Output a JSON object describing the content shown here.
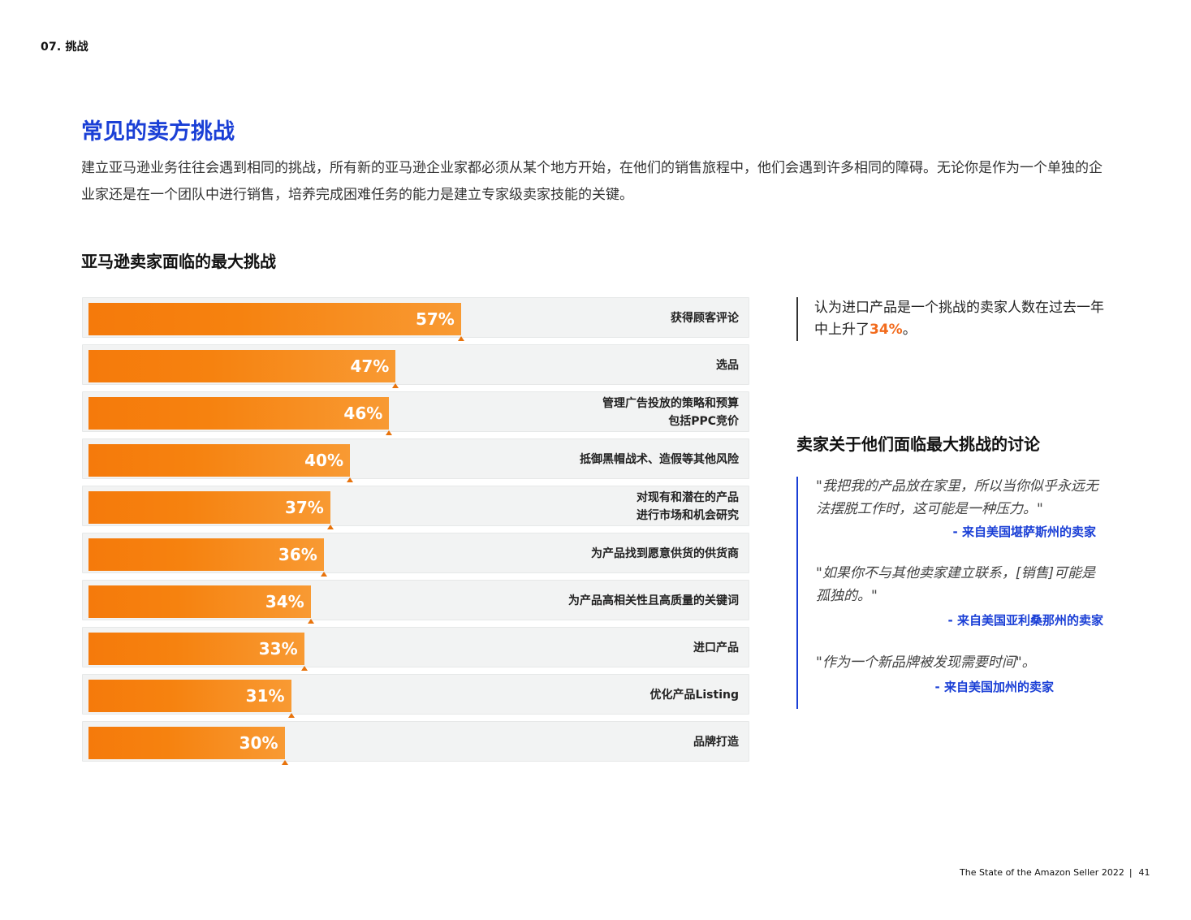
{
  "section_tag": "07. 挑战",
  "page_title": "常见的卖方挑战",
  "intro": "建立亚马逊业务往往会遇到相同的挑战，所有新的亚马逊企业家都必须从某个地方开始，在他们的销售旅程中，他们会遇到许多相同的障碍。无论你是作为一个单独的企业家还是在一个团队中进行销售，培养完成困难任务的能力是建立专家级卖家技能的关键。",
  "colors": {
    "accent_blue": "#1a3fd6",
    "bar_orange": "#f57a0b",
    "highlight_orange": "#f26b1d",
    "track_gray": "#f2f3f3"
  },
  "chart_data": {
    "type": "bar",
    "orientation": "horizontal",
    "title": "亚马逊卖家面临的最大挑战",
    "xlabel": "",
    "ylabel": "",
    "xlim": [
      0,
      100
    ],
    "grid": false,
    "legend": null,
    "categories": [
      "获得顾客评论",
      "选品",
      "管理广告投放的策略和预算\n包括PPC竞价",
      "抵御黑帽战术、造假等其他风险",
      "对现有和潜在的产品\n进行市场和机会研究",
      "为产品找到愿意供货的供货商",
      "为产品高相关性且高质量的关键词",
      "进口产品",
      "优化产品Listing",
      "品牌打造"
    ],
    "values": [
      57,
      47,
      46,
      40,
      37,
      36,
      34,
      33,
      31,
      30
    ],
    "value_labels": [
      "57%",
      "47%",
      "46%",
      "40%",
      "37%",
      "36%",
      "34%",
      "33%",
      "31%",
      "30%"
    ]
  },
  "stat_callout": {
    "text_before": "认为进口产品是一个挑战的卖家人数在过去一年中上升了",
    "highlight": "34%",
    "text_after": "。"
  },
  "quotes_section": {
    "title": "卖家关于他们面临最大挑战的讨论",
    "quotes": [
      {
        "text": "\"我把我的产品放在家里，所以当你似乎永远无法摆脱工作时，这可能是一种压力。\"",
        "attribution": "- 来自美国堪萨斯州的卖家"
      },
      {
        "text": "\"如果你不与其他卖家建立联系，[销售]可能是孤独的。\"",
        "attribution": "- 来自美国亚利桑那州的卖家"
      },
      {
        "text": "\"作为一个新品牌被发现需要时间\"。",
        "attribution": "- 来自美国加州的卖家"
      }
    ]
  },
  "footer": {
    "report_title": "The State of the Amazon Seller 2022",
    "separator": "|",
    "page_number": "41"
  }
}
